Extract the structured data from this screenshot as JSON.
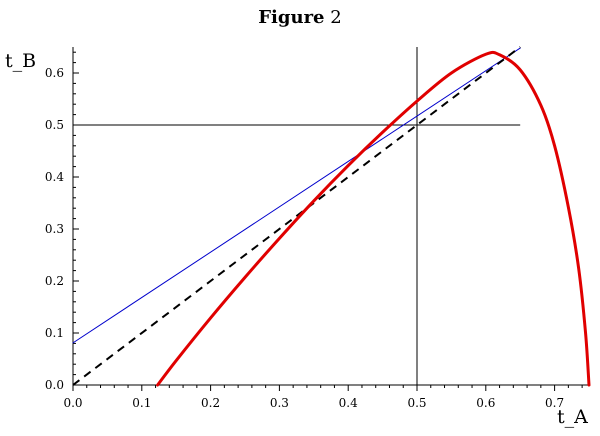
{
  "figure_title": {
    "bold": "Figure",
    "rest": "2"
  },
  "chart_data": {
    "type": "line",
    "xlabel": "t_A",
    "ylabel": "t_B",
    "xlim": [
      0,
      0.75
    ],
    "ylim": [
      0,
      0.65
    ],
    "xticks": [
      0.0,
      0.1,
      0.2,
      0.3,
      0.4,
      0.5,
      0.6,
      0.7
    ],
    "yticks": [
      0.0,
      0.1,
      0.2,
      0.3,
      0.4,
      0.5,
      0.6
    ],
    "xtick_labels": [
      "0.0",
      "0.1",
      "0.2",
      "0.3",
      "0.4",
      "0.5",
      "0.6",
      "0.7"
    ],
    "ytick_labels": [
      "0.0",
      "0.1",
      "0.2",
      "0.3",
      "0.4",
      "0.5",
      "0.6"
    ],
    "grid": false,
    "reference_lines": [
      {
        "orientation": "vertical",
        "x": 0.5,
        "ymin": 0,
        "ymax": 0.65,
        "color": "#000000"
      },
      {
        "orientation": "horizontal",
        "y": 0.5,
        "xmin": 0,
        "xmax": 0.65,
        "color": "#000000"
      }
    ],
    "series": [
      {
        "style": "solid",
        "color": "#e00000",
        "width": 3,
        "x": [
          0.123,
          0.15,
          0.2,
          0.25,
          0.3,
          0.35,
          0.4,
          0.45,
          0.5,
          0.55,
          0.6,
          0.62,
          0.65,
          0.68,
          0.7,
          0.72,
          0.735,
          0.745,
          0.75
        ],
        "y": [
          0.0,
          0.047,
          0.129,
          0.207,
          0.282,
          0.354,
          0.422,
          0.486,
          0.546,
          0.6,
          0.636,
          0.635,
          0.606,
          0.538,
          0.46,
          0.342,
          0.224,
          0.1,
          0.0
        ]
      },
      {
        "style": "solid",
        "color": "#0000cc",
        "width": 1,
        "x": [
          0.0,
          0.65
        ],
        "y": [
          0.081,
          0.648
        ]
      },
      {
        "style": "dashed",
        "color": "#000000",
        "width": 2,
        "x": [
          0.0,
          0.65
        ],
        "y": [
          0.0,
          0.65
        ]
      }
    ]
  }
}
